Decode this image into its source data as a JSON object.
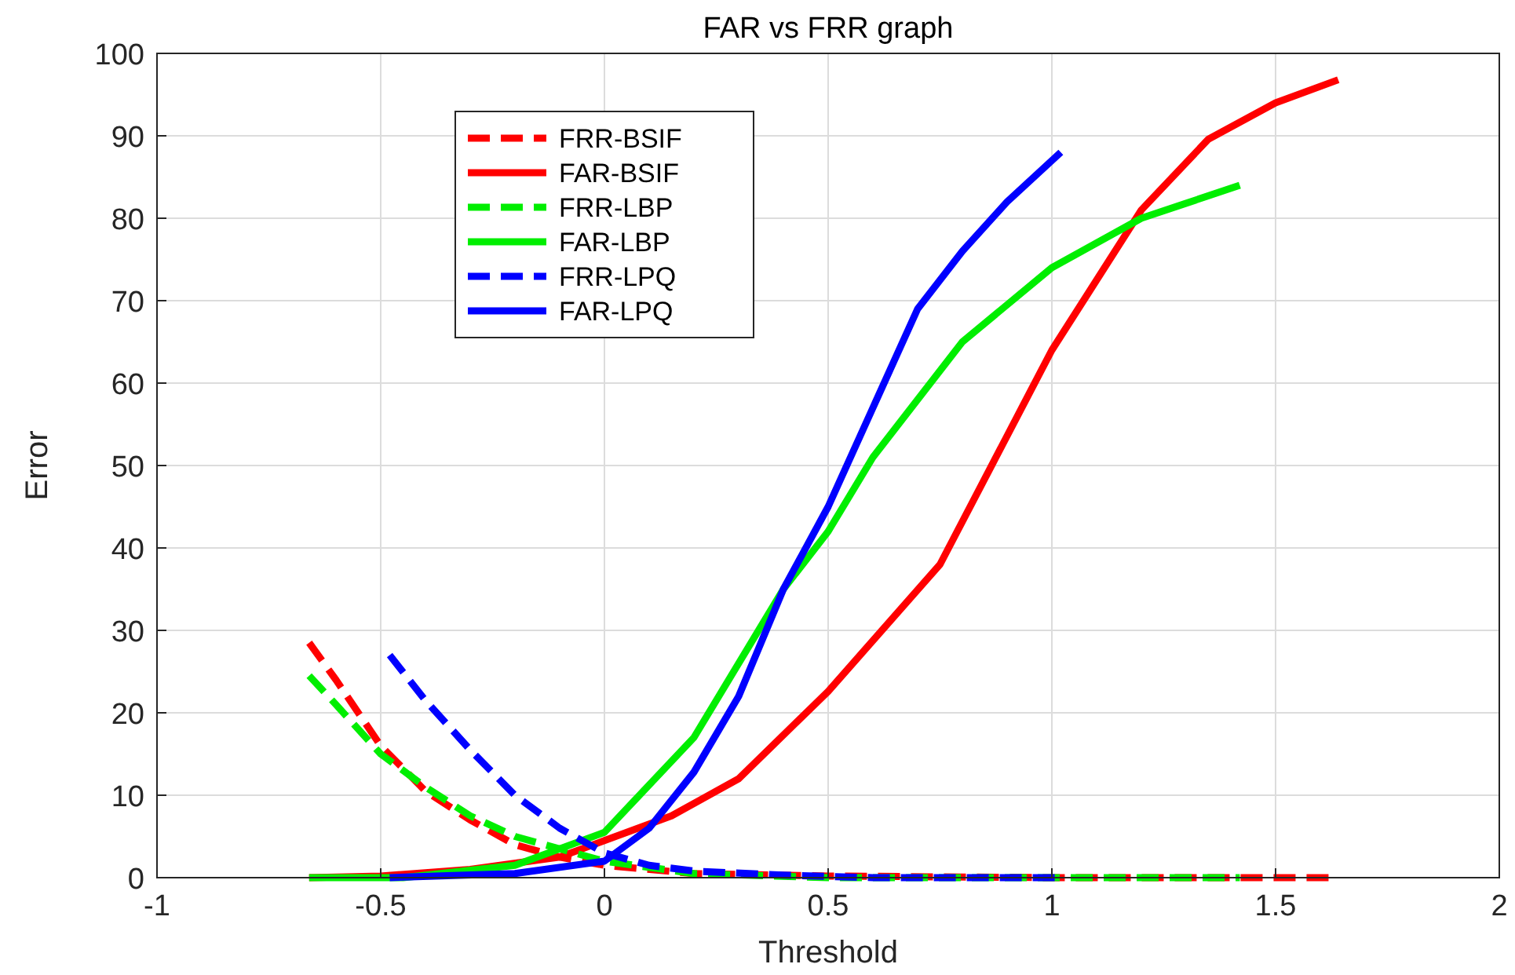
{
  "chart_data": {
    "type": "line",
    "title": "FAR vs FRR graph",
    "xlabel": "Threshold",
    "ylabel": "Error",
    "xlim": [
      -1,
      2
    ],
    "xticks": [
      -1,
      -0.5,
      0,
      0.5,
      1,
      1.5,
      2
    ],
    "ylim": [
      0,
      100
    ],
    "yticks": [
      0,
      10,
      20,
      30,
      40,
      50,
      60,
      70,
      80,
      90,
      100
    ],
    "grid": true,
    "legend": "top left",
    "series": [
      {
        "name": "FRR-BSIF",
        "color": "#ff0000",
        "line_style": "dashed",
        "x": [
          -0.66,
          -0.6,
          -0.5,
          -0.4,
          -0.3,
          -0.2,
          -0.1,
          0,
          0.2,
          0.5,
          1,
          1.64
        ],
        "values": [
          28.5,
          24,
          16,
          10.5,
          7,
          4,
          2.5,
          1.5,
          0.5,
          0.2,
          0,
          0
        ]
      },
      {
        "name": "FAR-BSIF",
        "color": "#ff0000",
        "line_style": "solid",
        "x": [
          -0.66,
          -0.5,
          -0.3,
          -0.1,
          0,
          0.15,
          0.3,
          0.5,
          0.75,
          1,
          1.2,
          1.35,
          1.5,
          1.64
        ],
        "values": [
          0,
          0.2,
          1,
          2.5,
          4.5,
          7.5,
          12,
          22.6,
          38,
          64,
          81,
          89.6,
          94,
          96.8
        ]
      },
      {
        "name": "FRR-LBP",
        "color": "#00ee00",
        "line_style": "dashed",
        "x": [
          -0.66,
          -0.6,
          -0.5,
          -0.4,
          -0.3,
          -0.2,
          -0.1,
          0,
          0.2,
          0.5,
          1,
          1.42
        ],
        "values": [
          24.5,
          21,
          15,
          11,
          7.5,
          5,
          3.5,
          2,
          0.5,
          0,
          0,
          0
        ]
      },
      {
        "name": "FAR-LBP",
        "color": "#00ee00",
        "line_style": "solid",
        "x": [
          -0.66,
          -0.45,
          -0.2,
          0,
          0.2,
          0.4,
          0.5,
          0.6,
          0.8,
          1,
          1.2,
          1.42
        ],
        "values": [
          0,
          0,
          1.5,
          5.5,
          17,
          35,
          42,
          51,
          65,
          74,
          80,
          84
        ]
      },
      {
        "name": "FRR-LPQ",
        "color": "#0000ff",
        "line_style": "dashed",
        "x": [
          -0.48,
          -0.4,
          -0.3,
          -0.2,
          -0.1,
          0,
          0.1,
          0.2,
          0.4,
          0.6,
          1.02
        ],
        "values": [
          27,
          21.5,
          15.5,
          10,
          6,
          3,
          1.5,
          0.8,
          0.3,
          0,
          0
        ]
      },
      {
        "name": "FAR-LPQ",
        "color": "#0000ff",
        "line_style": "solid",
        "x": [
          -0.48,
          -0.2,
          0,
          0.1,
          0.2,
          0.3,
          0.4,
          0.5,
          0.6,
          0.7,
          0.8,
          0.9,
          1.02
        ],
        "values": [
          0,
          0.5,
          2,
          6,
          12.8,
          22,
          35,
          45,
          57,
          69,
          76,
          82,
          88
        ]
      }
    ]
  }
}
